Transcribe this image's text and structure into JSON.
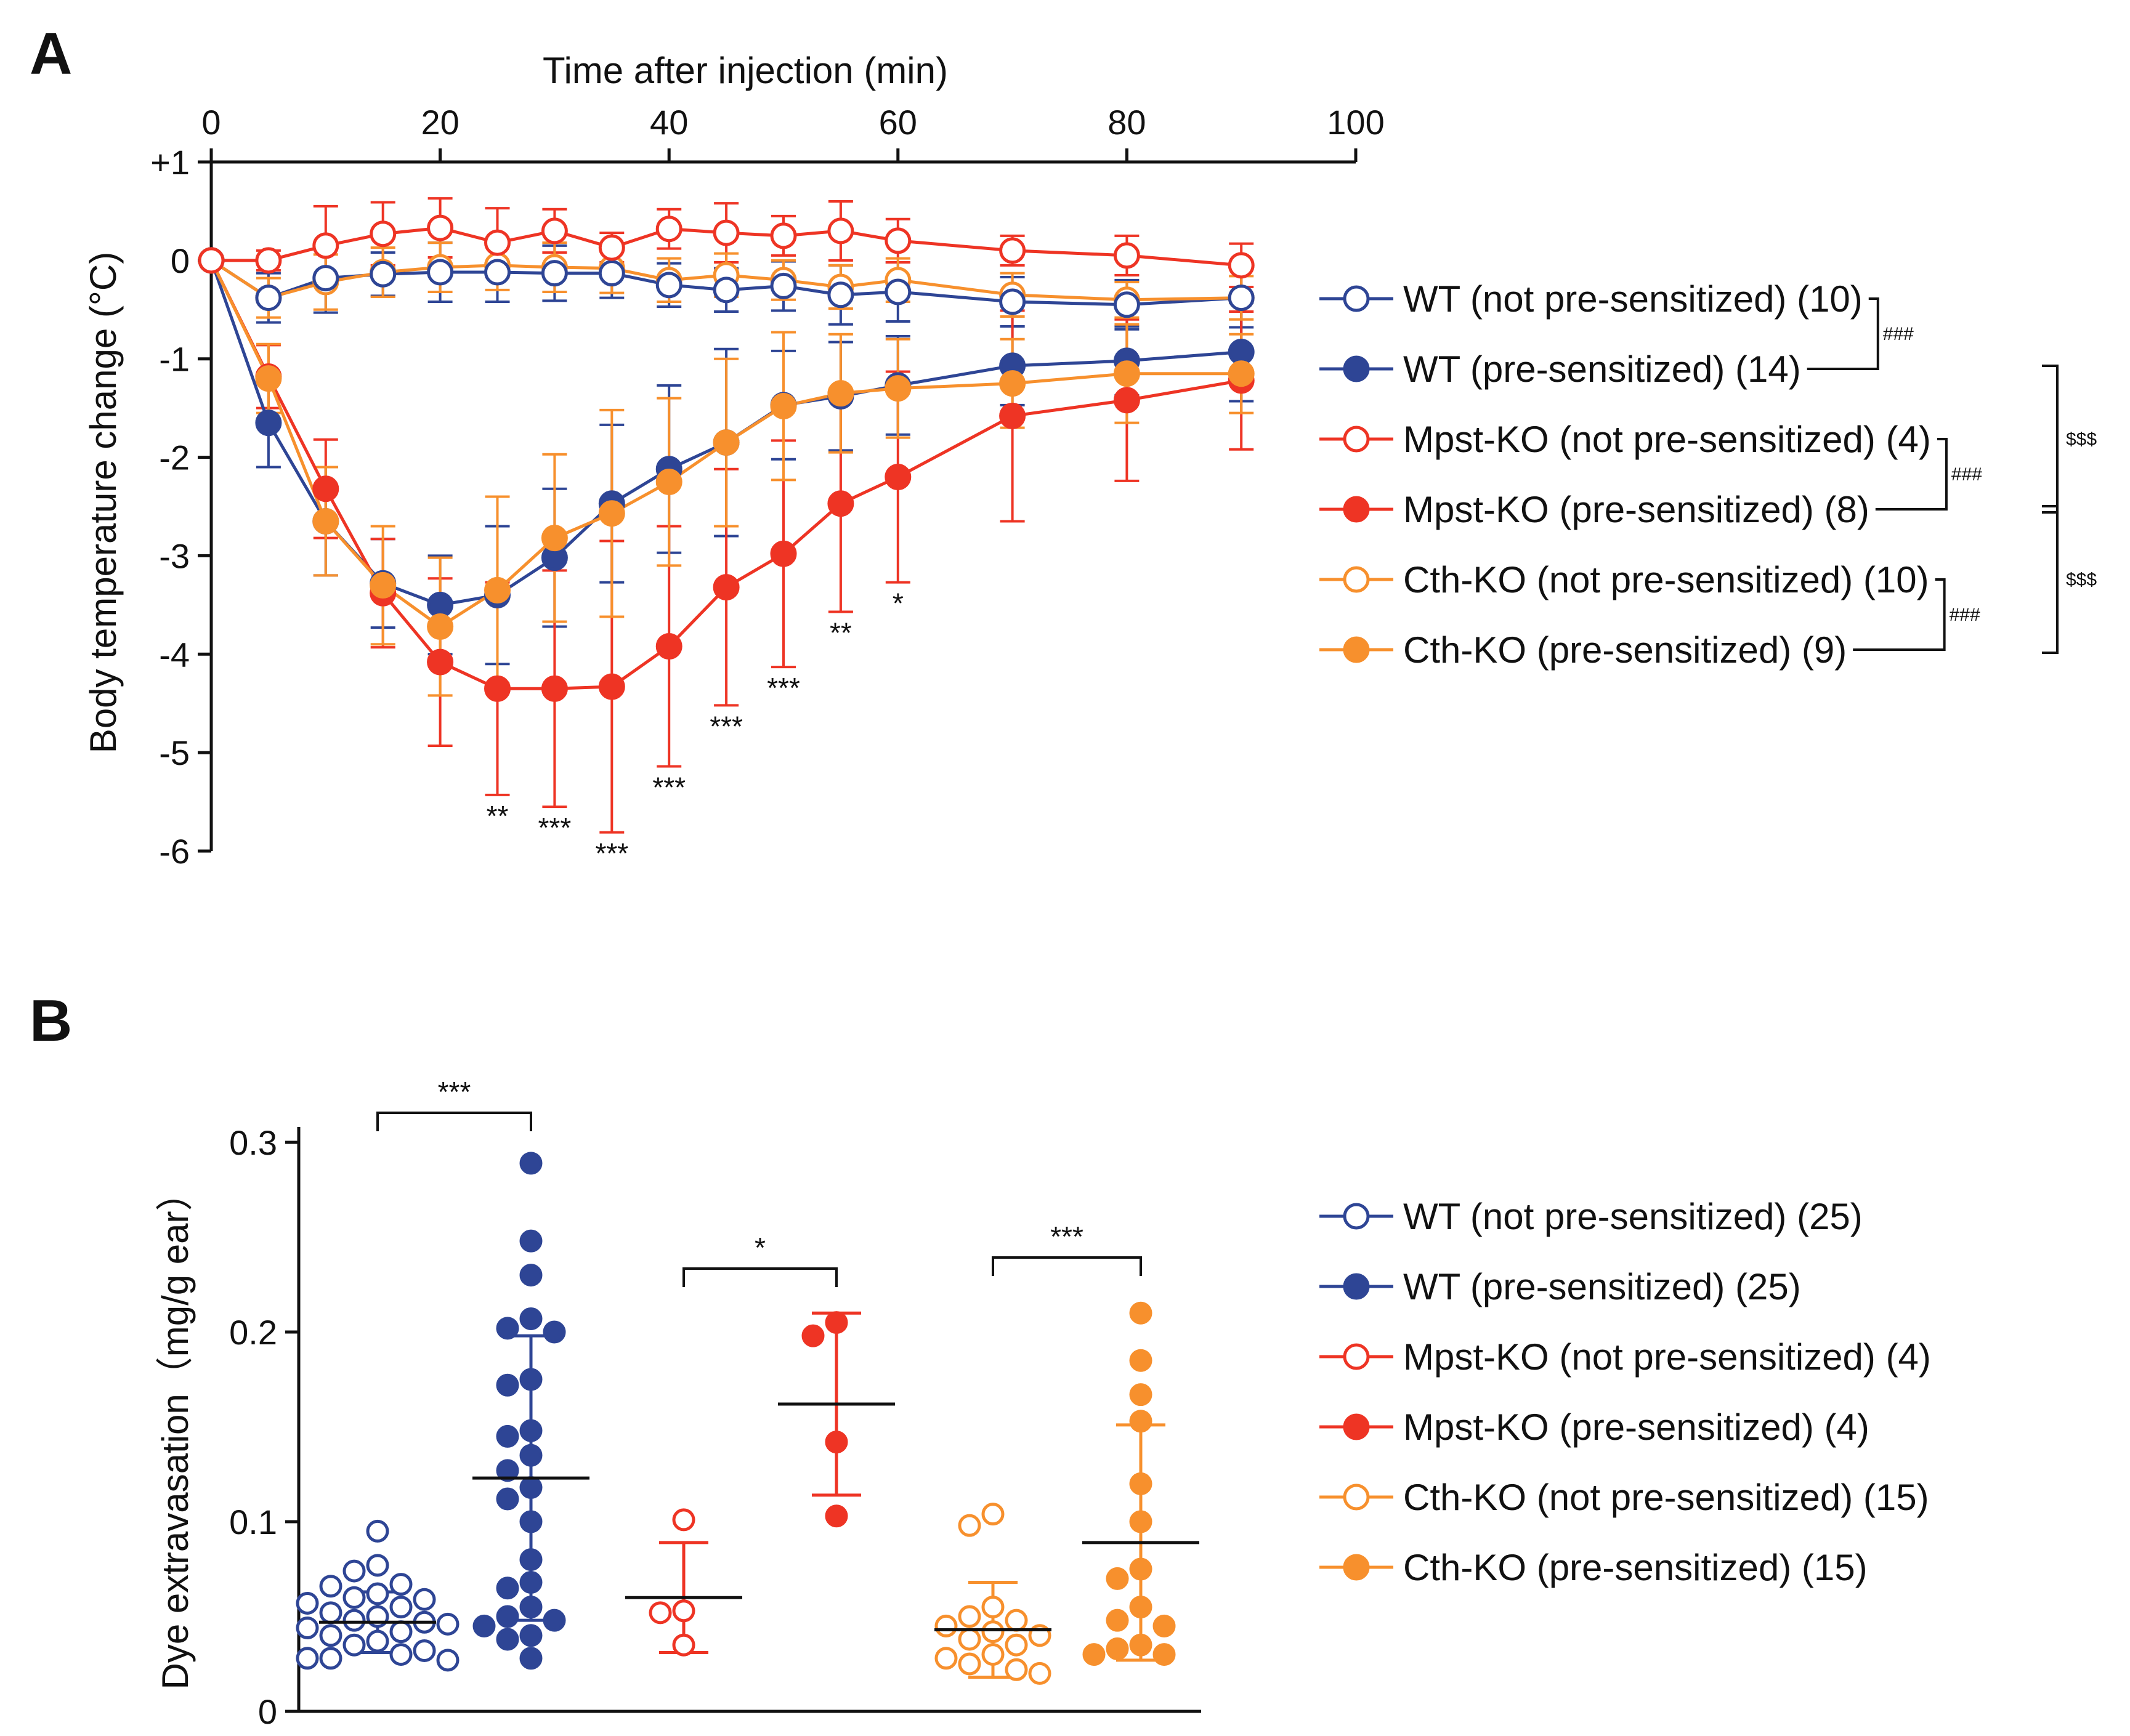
{
  "colors": {
    "wt": "#2e4595",
    "mpst": "#ee3424",
    "cth": "#f7902d",
    "axis": "#111111",
    "mean": "#111111"
  },
  "chart_data": [
    {
      "panel": "A",
      "type": "line",
      "title": "",
      "xlabel": "Time after injection (min)",
      "ylabel": "Body temperature change (°C)",
      "xlim": [
        0,
        100
      ],
      "ylim": [
        -6,
        1
      ],
      "x_ticks": [
        0,
        20,
        40,
        60,
        80,
        100
      ],
      "x_tick_labels": [
        "0",
        "20",
        "40",
        "60",
        "80",
        "100"
      ],
      "y_ticks": [
        1,
        0,
        -1,
        -2,
        -3,
        -4,
        -5,
        -6
      ],
      "y_tick_labels": [
        "+1",
        "0",
        "-1",
        "-2",
        "-3",
        "-4",
        "-5",
        "-6"
      ],
      "x": [
        0,
        5,
        10,
        15,
        20,
        25,
        30,
        35,
        40,
        45,
        50,
        55,
        60,
        70,
        80,
        90
      ],
      "series": [
        {
          "name": "WT (not pre-sensitized) (10)",
          "color_key": "wt",
          "filled": false,
          "values": [
            0,
            -0.38,
            -0.18,
            -0.14,
            -0.12,
            -0.12,
            -0.13,
            -0.13,
            -0.25,
            -0.3,
            -0.26,
            -0.35,
            -0.32,
            -0.42,
            -0.45,
            -0.38
          ],
          "errors": [
            0,
            0.25,
            0.35,
            0.22,
            0.3,
            0.3,
            0.28,
            0.25,
            0.22,
            0.22,
            0.25,
            0.3,
            0.3,
            0.25,
            0.25,
            0.3
          ]
        },
        {
          "name": "WT (pre-sensitized) (14)",
          "color_key": "wt",
          "filled": true,
          "values": [
            0,
            -1.65,
            -2.65,
            -3.28,
            -3.5,
            -3.4,
            -3.02,
            -2.47,
            -2.12,
            -1.85,
            -1.47,
            -1.38,
            -1.27,
            -1.07,
            -1.02,
            -0.93
          ],
          "errors": [
            0,
            0.45,
            0.55,
            0.45,
            0.5,
            0.7,
            0.7,
            0.8,
            0.85,
            0.95,
            0.55,
            0.55,
            0.5,
            0.4,
            0.35,
            0.5
          ]
        },
        {
          "name": "Mpst-KO (not pre-sensitized) (4)",
          "color_key": "mpst",
          "filled": false,
          "values": [
            0,
            0,
            0.15,
            0.27,
            0.33,
            0.18,
            0.3,
            0.13,
            0.32,
            0.28,
            0.25,
            0.3,
            0.2,
            0.1,
            0.05,
            -0.05
          ],
          "errors": [
            0,
            0.1,
            0.4,
            0.32,
            0.3,
            0.35,
            0.22,
            0.15,
            0.2,
            0.3,
            0.2,
            0.3,
            0.22,
            0.15,
            0.2,
            0.22
          ]
        },
        {
          "name": "Mpst-KO (pre-sensitized) (8)",
          "color_key": "mpst",
          "filled": true,
          "values": [
            0,
            -1.18,
            -2.32,
            -3.38,
            -4.08,
            -4.35,
            -4.35,
            -4.33,
            -3.92,
            -3.32,
            -2.98,
            -2.47,
            -2.2,
            -1.58,
            -1.42,
            -1.22
          ],
          "errors": [
            0,
            0.32,
            0.5,
            0.55,
            0.85,
            1.08,
            1.2,
            1.48,
            1.22,
            1.2,
            1.15,
            1.1,
            1.07,
            1.07,
            0.82,
            0.7
          ]
        },
        {
          "name": "Cth-KO (not pre-sensitized) (10)",
          "color_key": "cth",
          "filled": false,
          "values": [
            0,
            -0.38,
            -0.22,
            -0.12,
            -0.07,
            -0.05,
            -0.07,
            -0.08,
            -0.2,
            -0.15,
            -0.2,
            -0.27,
            -0.2,
            -0.35,
            -0.4,
            -0.38
          ],
          "errors": [
            0,
            0.2,
            0.28,
            0.25,
            0.25,
            0.25,
            0.25,
            0.25,
            0.22,
            0.22,
            0.2,
            0.22,
            0.22,
            0.22,
            0.18,
            0.22
          ]
        },
        {
          "name": "Cth-KO (pre-sensitized) (9)",
          "color_key": "cth",
          "filled": true,
          "values": [
            0,
            -1.2,
            -2.65,
            -3.3,
            -3.72,
            -3.35,
            -2.82,
            -2.57,
            -2.25,
            -1.85,
            -1.48,
            -1.35,
            -1.3,
            -1.25,
            -1.15,
            -1.15
          ],
          "errors": [
            0,
            0.35,
            0.55,
            0.6,
            0.7,
            0.95,
            0.85,
            1.05,
            0.85,
            0.85,
            0.75,
            0.6,
            0.5,
            0.45,
            0.5,
            0.4
          ]
        }
      ],
      "significance_marks": [
        {
          "x": 25,
          "text": "**"
        },
        {
          "x": 30,
          "text": "***"
        },
        {
          "x": 35,
          "text": "***"
        },
        {
          "x": 40,
          "text": "***"
        },
        {
          "x": 45,
          "text": "***"
        },
        {
          "x": 50,
          "text": "***"
        },
        {
          "x": 55,
          "text": "**"
        },
        {
          "x": 60,
          "text": "*"
        }
      ],
      "legend_brackets": [
        {
          "between": [
            0,
            1
          ],
          "text": "###"
        },
        {
          "between": [
            2,
            3
          ],
          "text": "###"
        },
        {
          "between": [
            4,
            5
          ],
          "text": "###"
        },
        {
          "between": [
            1,
            3
          ],
          "text": "$$$"
        },
        {
          "between": [
            3,
            5
          ],
          "text": "$$$"
        }
      ]
    },
    {
      "panel": "B",
      "type": "scatter",
      "title": "",
      "xlabel": "",
      "ylabel": "Dye extravasation（mg/g ear）",
      "ylim": [
        0,
        0.3
      ],
      "y_ticks": [
        0,
        0.1,
        0.2,
        0.3
      ],
      "y_tick_labels": [
        "0",
        "0.1",
        "0.2",
        "0.3"
      ],
      "groups": [
        {
          "name": "WT (not pre-sensitized) (25)",
          "color_key": "wt",
          "filled": false,
          "mean": 0.047,
          "sd": 0.016,
          "points": [
            0.095,
            0.077,
            0.074,
            0.067,
            0.066,
            0.062,
            0.06,
            0.059,
            0.057,
            0.055,
            0.052,
            0.05,
            0.048,
            0.047,
            0.046,
            0.044,
            0.042,
            0.04,
            0.037,
            0.035,
            0.032,
            0.03,
            0.028,
            0.028,
            0.027
          ]
        },
        {
          "name": "WT (pre-sensitized) (25)",
          "color_key": "wt",
          "filled": true,
          "mean": 0.123,
          "sd": 0.075,
          "points": [
            0.289,
            0.248,
            0.23,
            0.207,
            0.202,
            0.2,
            0.175,
            0.172,
            0.148,
            0.145,
            0.135,
            0.127,
            0.118,
            0.112,
            0.1,
            0.08,
            0.068,
            0.065,
            0.055,
            0.05,
            0.048,
            0.045,
            0.04,
            0.038,
            0.028
          ]
        },
        {
          "name": "Mpst-KO (not pre-sensitized) (4)",
          "color_key": "mpst",
          "filled": false,
          "mean": 0.06,
          "sd": 0.029,
          "points": [
            0.101,
            0.053,
            0.052,
            0.035
          ]
        },
        {
          "name": "Mpst-KO (pre-sensitized) (4)",
          "color_key": "mpst",
          "filled": true,
          "mean": 0.162,
          "sd": 0.048,
          "points": [
            0.205,
            0.198,
            0.142,
            0.103
          ]
        },
        {
          "name": "Cth-KO (not pre-sensitized) (15)",
          "color_key": "cth",
          "filled": false,
          "mean": 0.043,
          "sd": 0.025,
          "points": [
            0.104,
            0.098,
            0.055,
            0.05,
            0.048,
            0.045,
            0.042,
            0.04,
            0.038,
            0.035,
            0.03,
            0.028,
            0.025,
            0.022,
            0.02
          ]
        },
        {
          "name": "Cth-KO (pre-sensitized) (15)",
          "color_key": "cth",
          "filled": true,
          "mean": 0.089,
          "sd": 0.062,
          "points": [
            0.21,
            0.185,
            0.167,
            0.153,
            0.12,
            0.1,
            0.075,
            0.07,
            0.055,
            0.048,
            0.045,
            0.035,
            0.033,
            0.03,
            0.03
          ]
        }
      ],
      "comparisons": [
        {
          "groups": [
            0,
            1
          ],
          "text": "***"
        },
        {
          "groups": [
            2,
            3
          ],
          "text": "*"
        },
        {
          "groups": [
            4,
            5
          ],
          "text": "***"
        }
      ]
    }
  ],
  "panels": {
    "a_label": "A",
    "b_label": "B"
  }
}
